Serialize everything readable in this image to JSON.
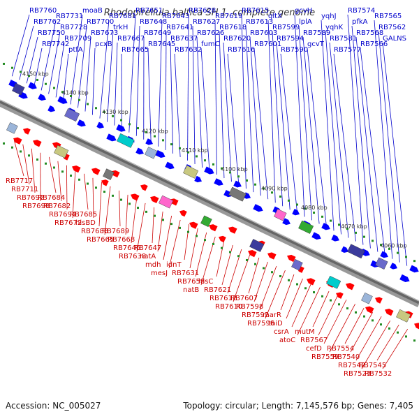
{
  "title": "Rhodopirellula baltica SH 1, complete genome",
  "footer": {
    "accession": "Accession: NC_005027",
    "topology": "Topology: circular; Length: 7,145,576 bp; Genes: 7,405"
  },
  "colors": {
    "forward_strand": "#0000ff",
    "reverse_strand": "#ff0000",
    "top_label": "#0000cc",
    "bottom_label": "#cc0000",
    "backbone": "#666666",
    "tick": "#228b22"
  },
  "kbp_ticks": [
    "4150 kbp",
    "4140 kbp",
    "4130 kbp",
    "4120 kbp",
    "4110 kbp",
    "4100 kbp",
    "4090 kbp",
    "4080 kbp",
    "4070 kbp",
    "4060 kbp"
  ],
  "top_labels": [
    "RB7760",
    "RB7762",
    "RB7750",
    "RB7742",
    "RB7731",
    "RB7728",
    "RB7709",
    "ptfA",
    "moaB",
    "RB7700",
    "RB7673",
    "pcxB",
    "RB7681",
    "trkH",
    "RB7667",
    "RB7665",
    "RB7651",
    "RB7648",
    "RB7649",
    "RB7645",
    "RB7643",
    "RB7641",
    "RB7637",
    "RB7632",
    "RB7628",
    "RB7627",
    "RB7626",
    "fumC",
    "RB7619",
    "RB7618",
    "RB7620",
    "RB7616",
    "RB7615",
    "RB7613",
    "RB7603",
    "RB7601",
    "gltX",
    "RB7599",
    "RB7594",
    "RB7590",
    "gcvH",
    "lplA",
    "RB7589",
    "gcvT",
    "yqhJ",
    "yqhK",
    "RB7581",
    "RB7577",
    "RB7574",
    "pfkA",
    "RB7568",
    "RB7566",
    "RB7565",
    "RB7562",
    "GALNS"
  ],
  "bottom_labels": [
    "RB7717",
    "RB7711",
    "RB7692",
    "RB7698",
    "RB7684",
    "RB7682",
    "RB7694",
    "RB7672",
    "RB7685",
    "hisBD",
    "RB7688",
    "RB7665",
    "RB7689",
    "RB7668",
    "RB7646",
    "RB7638",
    "RB7647",
    "natA",
    "mdh",
    "mesJ",
    "idnT",
    "RB7631",
    "RB7658",
    "natB",
    "hisC",
    "RB7621",
    "RB7612",
    "RB7610",
    "RB7607",
    "RB7598",
    "RB7592",
    "RB7596",
    "marR",
    "thiD",
    "csrA",
    "atoC",
    "mutM",
    "RB7567",
    "cefD",
    "RB7559",
    "RB7554",
    "RB7540",
    "RB7542",
    "RB7523",
    "RB7545",
    "RB7532"
  ]
}
